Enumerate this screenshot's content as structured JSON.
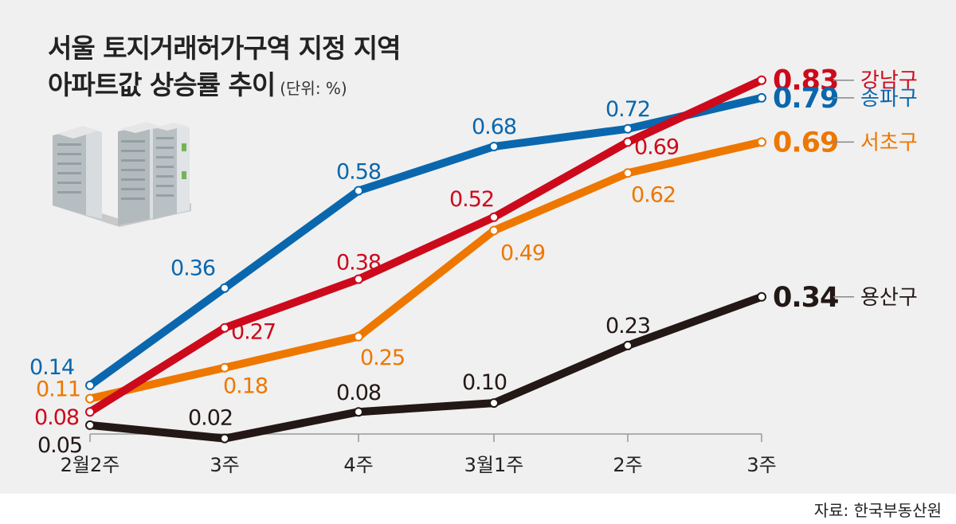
{
  "title": {
    "line1": "서울 토지거래허가구역 지정 지역",
    "line2": "아파트값 상승률 추이",
    "unit": "(단위: %)"
  },
  "source": "자료: 한국부동산원",
  "colors": {
    "background": "#f0f0f0",
    "gangnam": "#cc0a1c",
    "songpa": "#0a67ad",
    "seocho": "#ee7700",
    "yongsan": "#231815",
    "axis": "#999999"
  },
  "chart_data": {
    "type": "line",
    "title": "서울 토지거래허가구역 지정 지역 아파트값 상승률 추이",
    "unit": "(단위: %)",
    "categories": [
      "2월2주",
      "3주",
      "4주",
      "3월1주",
      "2주",
      "3주"
    ],
    "ylim": [
      0.03,
      0.86
    ],
    "grid": false,
    "legend": "right, at line ends",
    "series": [
      {
        "name": "강남구",
        "color": "#cc0a1c",
        "values": [
          0.08,
          0.27,
          0.38,
          0.52,
          0.69,
          0.83
        ]
      },
      {
        "name": "송파구",
        "color": "#0a67ad",
        "values": [
          0.14,
          0.36,
          0.58,
          0.68,
          0.72,
          0.79
        ]
      },
      {
        "name": "서초구",
        "color": "#ee7700",
        "values": [
          0.11,
          0.18,
          0.25,
          0.49,
          0.62,
          0.69
        ]
      },
      {
        "name": "용산구",
        "color": "#231815",
        "values": [
          0.05,
          0.02,
          0.08,
          0.1,
          0.23,
          0.34
        ]
      }
    ],
    "value_labels": [
      [
        "0.08",
        "0.27",
        "0.38",
        "0.52",
        "0.69",
        "0.83"
      ],
      [
        "0.14",
        "0.36",
        "0.58",
        "0.68",
        "0.72",
        "0.79"
      ],
      [
        "0.11",
        "0.18",
        "0.25",
        "0.49",
        "0.62",
        "0.69"
      ],
      [
        "0.05",
        "0.02",
        "0.08",
        "0.10",
        "0.23",
        "0.34"
      ]
    ]
  }
}
